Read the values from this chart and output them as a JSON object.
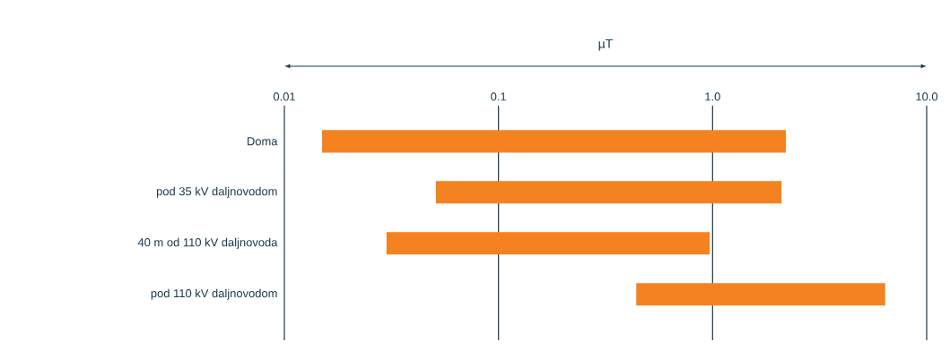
{
  "chart_data": {
    "type": "bar",
    "orientation": "horizontal",
    "xlabel": "µT",
    "categories": [
      "Doma",
      "pod 35 kV daljnovodom",
      "40 m od 110 kV daljnovoda",
      "pod 110 kV daljnovodom"
    ],
    "base": [
      0.015,
      0.051,
      0.03,
      0.44
    ],
    "values": [
      2.185,
      2.049,
      0.94,
      5.96
    ],
    "color": "#f58220",
    "log": "x",
    "xlim": [
      0.01,
      10
    ],
    "xticks": [
      0.01,
      0.1,
      {
        "value": 1,
        "label": "1.0"
      },
      {
        "value": 10,
        "label": "10.0"
      }
    ],
    "grid": "x"
  }
}
